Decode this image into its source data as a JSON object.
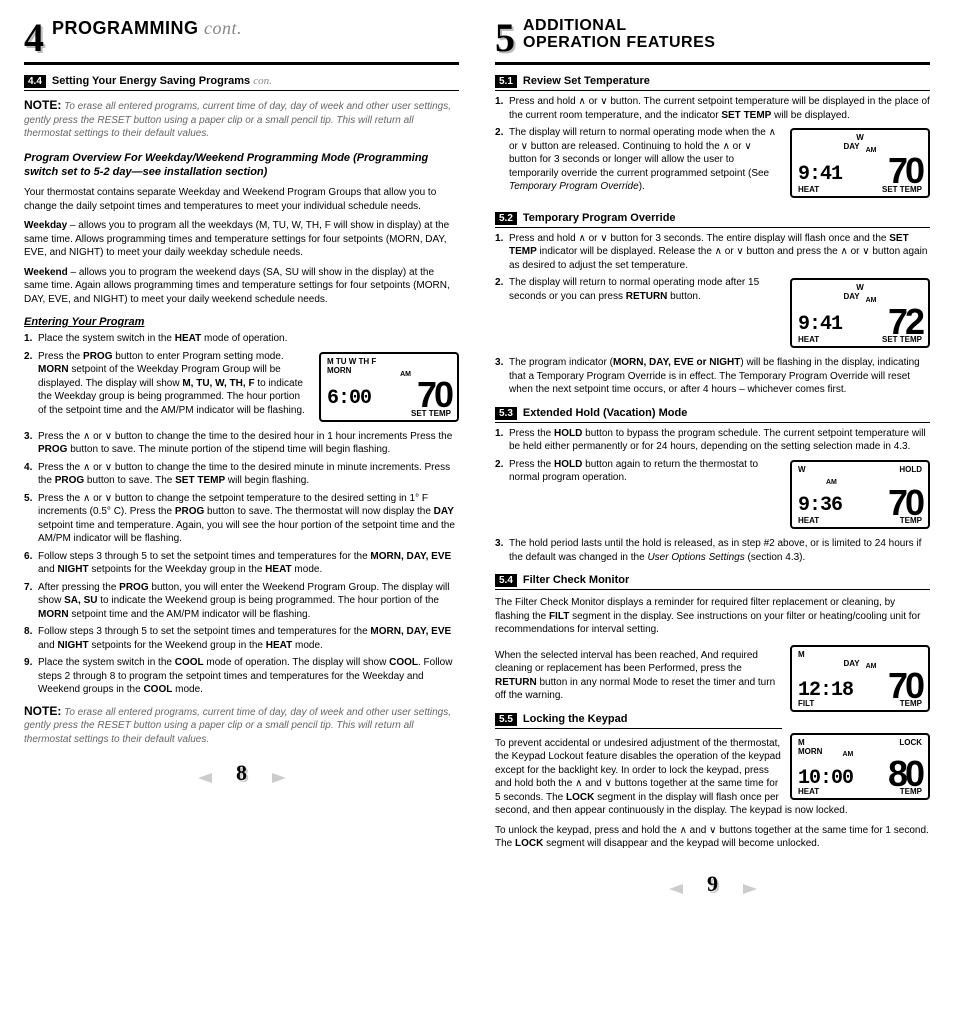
{
  "left": {
    "section_number": "4",
    "section_title": "PROGRAMMING",
    "section_cont": "cont.",
    "sub44_num": "4.4",
    "sub44_title": "Setting Your Energy Saving Programs",
    "sub44_con": "con.",
    "note1_lead": "NOTE:",
    "note1_body": "To erase all entered programs, current time of day, day of week and other user settings, gently press the RESET button using a paper clip or a small pencil tip. This will return all thermostat settings to their default values.",
    "overview_heading": "Program Overview For Weekday/Weekend Programming Mode (Programming switch set to 5-2 day—see installation section)",
    "overview_p": "Your thermostat contains separate Weekday and Weekend Program Groups that allow you to change the daily setpoint times and temperatures to meet your individual schedule needs.",
    "weekday_p": "<b>Weekday</b> – allows you to program all the weekdays (M, TU, W, TH, F will show in display) at the same time. Allows programming times and temperature settings for four setpoints (MORN, DAY, EVE, and NIGHT) to meet your daily weekday schedule needs.",
    "weekend_p": "<b>Weekend</b> – allows you to program the weekend days (SA, SU will show in the display) at the same time. Again allows programming times and temperature settings for four setpoints (MORN, DAY, EVE, and NIGHT) to meet your daily weekend schedule needs.",
    "enter_heading": "Entering Your Program",
    "steps": [
      "Place the system switch in the <b>HEAT</b> mode of operation.",
      "Press the <b>PROG</b> button to enter Program setting mode. <b>MORN</b> setpoint of the Weekday Program Group will be displayed. The display will show <b>M, TU, W, TH, F</b> to indicate the Weekday group is being programmed. The hour portion of the setpoint time and the AM/PM indicator will be flashing.",
      "Press the ∧ or ∨ button to change the time to the desired hour in 1 hour increments Press the <b>PROG</b> button to save. The minute portion of the stipend time will begin flashing.",
      "Press the ∧ or ∨ button to change the time to the desired minute in minute increments. Press the <b>PROG</b> button to save. The <b>SET TEMP</b> will begin flashing.",
      "Press the ∧ or ∨ button to change the setpoint temperature to the desired setting in 1° F increments (0.5° C). Press the <b>PROG</b> button to save. The thermostat will now display the <b>DAY</b> setpoint time and temperature. Again, you will see the hour portion of the setpoint time and the AM/PM indicator will be flashing.",
      "Follow steps 3 through 5 to set the setpoint times and temperatures for the <b>MORN, DAY, EVE</b> and <b>NIGHT</b> setpoints for the Weekday group in the <b>HEAT</b> mode.",
      "After pressing the <b>PROG</b> button, you will enter the Weekend Program Group. The display will show <b>SA, SU</b> to indicate the Weekend group is being programmed. The hour portion of the <b>MORN</b> setpoint time and the AM/PM indicator will be flashing.",
      "Follow steps 3 through 5 to set the setpoint times and temperatures for the <b>MORN, DAY, EVE</b> and <b>NIGHT</b> setpoints for the Weekend group in the <b>HEAT</b> mode.",
      "Place the system switch in the <b>COOL</b> mode of operation. The display will show <b>COOL</b>. Follow steps 2 through 8 to program the setpoint times and temperatures for the Weekday and Weekend groups in the <b>COOL</b> mode."
    ],
    "note2_lead": "NOTE:",
    "note2_body": "To erase all entered programs, current time of day, day of week and other user settings, gently press the RESET button using a paper clip or a small pencil tip. This will return all thermostat settings to their default values.",
    "lcd1": {
      "top_l": "M  TU  W  TH  F",
      "top_r": "",
      "row2_l": "MORN",
      "am": "AM",
      "time": "6:00",
      "temp": "70",
      "bot_l": "",
      "bot_r": "SET  TEMP"
    },
    "page_number": "8"
  },
  "right": {
    "section_number": "5",
    "section_title_l1": "ADDITIONAL",
    "section_title_l2": "OPERATION FEATURES",
    "s51_num": "5.1",
    "s51_title": "Review Set Temperature",
    "s51_steps": [
      "Press and hold ∧ or ∨ button. The current setpoint temperature will be displayed in the place of the current room temperature, and the indicator <b>SET TEMP</b> will be displayed.",
      "The display will return to normal operating mode when the ∧ or ∨ button are released. Continuing to hold the ∧ or ∨ button for 3 seconds or longer will allow the user to temporarily override the current programmed setpoint (See <i>Temporary Program Override</i>)."
    ],
    "lcd51": {
      "top_c": "W",
      "row2": "DAY",
      "am": "AM",
      "time": "9:41",
      "temp": "70",
      "bot_l": "HEAT",
      "bot_r": "SET  TEMP"
    },
    "s52_num": "5.2",
    "s52_title": "Temporary Program Override",
    "s52_steps": [
      "Press and hold ∧ or ∨ button for 3 seconds. The entire display will flash once and the <b>SET TEMP</b> indicator will be displayed. Release the ∧ or ∨ button and press the ∧ or ∨ button again as desired to adjust the set temperature.",
      "The display will return to normal operating mode after 15 seconds or you can press <b>RETURN</b> button.",
      "The program indicator (<b>MORN, DAY, EVE or NIGHT</b>) will be flashing in the display, indicating that a Temporary Program Override is in effect. The Temporary Program Override will reset when the next setpoint time occurs, or after 4 hours – whichever comes first."
    ],
    "lcd52": {
      "top_c": "W",
      "row2": "DAY",
      "am": "AM",
      "time": "9:41",
      "temp": "72",
      "bot_l": "HEAT",
      "bot_r": "SET  TEMP"
    },
    "s53_num": "5.3",
    "s53_title": "Extended Hold (Vacation) Mode",
    "s53_steps": [
      "Press the <b>HOLD</b> button to bypass the program schedule. The current setpoint temperature will be held either permanently or for 24 hours, depending on the setting selection made in 4.3.",
      "Press the <b>HOLD</b> button again to return the thermostat to normal program operation.",
      "The hold period lasts until the hold is released, as in step #2 above, or is limited to 24 hours if the default was changed in the <i>User Options Settings</i> (section 4.3)."
    ],
    "lcd53": {
      "top_l": "W",
      "top_r": "HOLD",
      "am": "AM",
      "time": "9:36",
      "temp": "70",
      "bot_l": "HEAT",
      "bot_r": "TEMP"
    },
    "s54_num": "5.4",
    "s54_title": "Filter Check Monitor",
    "s54_p1": "The Filter Check Monitor displays a reminder for required filter replacement or cleaning, by flashing the <b>FILT</b> segment in the display. See instructions on your filter or heating/cooling unit for recommendations for interval setting.",
    "s54_p2": "When the selected interval has been reached, And required cleaning or replacement has been Performed, press the <b>RETURN</b> button in any normal Mode to reset the timer and turn off the warning.",
    "lcd54": {
      "top_l": "M",
      "row2": "DAY",
      "am": "AM",
      "time": "12:18",
      "temp": "70",
      "bot_l": "FILT",
      "bot_r": "TEMP"
    },
    "s55_num": "5.5",
    "s55_title": "Locking the Keypad",
    "s55_p1": "To prevent accidental or undesired adjustment of the thermostat, the Keypad Lockout feature disables the operation of the keypad except for the backlight key. In order to lock the keypad, press and hold both the ∧ and ∨ buttons together at the same time for 5 seconds. The <b>LOCK</b> segment in the display will flash once per second, and then appear continuously in the display. The keypad is now locked.",
    "s55_p2": "To unlock the keypad, press and hold the ∧ and ∨ buttons together at the same time for 1 second. The <b>LOCK</b> segment will disappear and the keypad will become unlocked.",
    "lcd55": {
      "top_l": "M",
      "top_r": "LOCK",
      "row2_l": "MORN",
      "am": "AM",
      "time": "10:00",
      "temp": "80",
      "bot_l": "HEAT",
      "bot_r": "TEMP"
    },
    "page_number": "9"
  }
}
